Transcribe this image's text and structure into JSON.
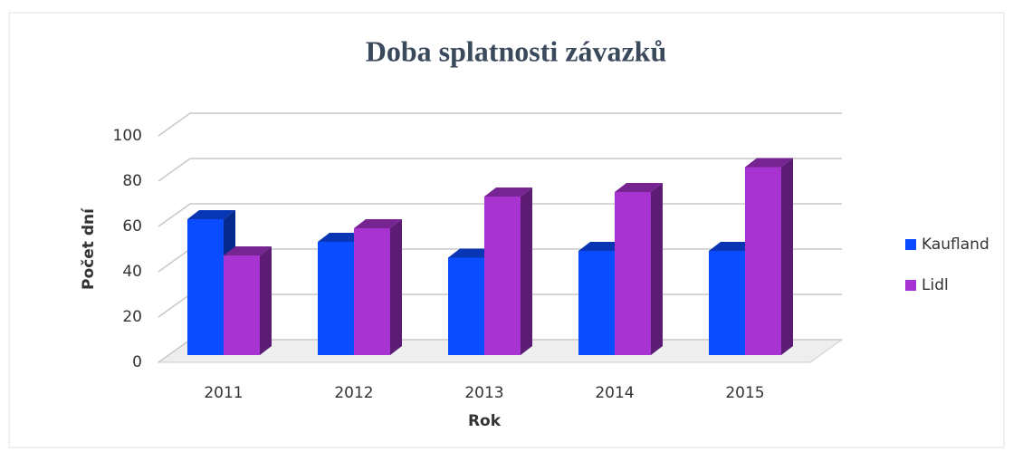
{
  "chart_data": {
    "type": "bar3d",
    "title": "Doba splatnosti závazků",
    "x_label": "Rok",
    "y_label": "Počet dní",
    "categories": [
      "2011",
      "2012",
      "2013",
      "2014",
      "2015"
    ],
    "series": [
      {
        "name": "Kaufland",
        "color": "#0a4cff",
        "values": [
          60,
          50,
          43,
          46,
          46
        ]
      },
      {
        "name": "Lidl",
        "color": "#a733d1",
        "values": [
          44,
          56,
          70,
          72,
          83
        ]
      }
    ],
    "ylim": [
      0,
      100
    ],
    "yticks": [
      0,
      20,
      40,
      60,
      80,
      100
    ],
    "grid": true,
    "legend": "right"
  }
}
